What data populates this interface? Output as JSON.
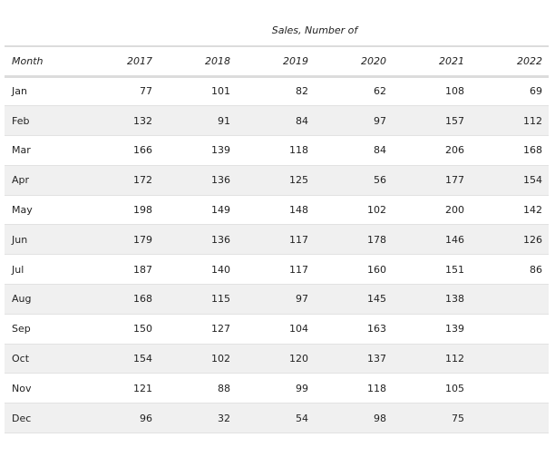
{
  "table": {
    "group_title": "Sales, Number of",
    "month_header": "Month",
    "years": [
      "2017",
      "2018",
      "2019",
      "2020",
      "2021",
      "2022"
    ],
    "rows": [
      {
        "month": "Jan",
        "values": [
          "77",
          "101",
          "82",
          "62",
          "108",
          "69"
        ]
      },
      {
        "month": "Feb",
        "values": [
          "132",
          "91",
          "84",
          "97",
          "157",
          "112"
        ]
      },
      {
        "month": "Mar",
        "values": [
          "166",
          "139",
          "118",
          "84",
          "206",
          "168"
        ]
      },
      {
        "month": "Apr",
        "values": [
          "172",
          "136",
          "125",
          "56",
          "177",
          "154"
        ]
      },
      {
        "month": "May",
        "values": [
          "198",
          "149",
          "148",
          "102",
          "200",
          "142"
        ]
      },
      {
        "month": "Jun",
        "values": [
          "179",
          "136",
          "117",
          "178",
          "146",
          "126"
        ]
      },
      {
        "month": "Jul",
        "values": [
          "187",
          "140",
          "117",
          "160",
          "151",
          "86"
        ]
      },
      {
        "month": "Aug",
        "values": [
          "168",
          "115",
          "97",
          "145",
          "138",
          ""
        ]
      },
      {
        "month": "Sep",
        "values": [
          "150",
          "127",
          "104",
          "163",
          "139",
          ""
        ]
      },
      {
        "month": "Oct",
        "values": [
          "154",
          "102",
          "120",
          "137",
          "112",
          ""
        ]
      },
      {
        "month": "Nov",
        "values": [
          "121",
          "88",
          "99",
          "118",
          "105",
          ""
        ]
      },
      {
        "month": "Dec",
        "values": [
          "96",
          "32",
          "54",
          "98",
          "75",
          ""
        ]
      }
    ]
  },
  "colors": {
    "stripe": "#f0f0f0",
    "header_rule": "#dcdcdc",
    "row_rule": "#e2e2e2"
  }
}
